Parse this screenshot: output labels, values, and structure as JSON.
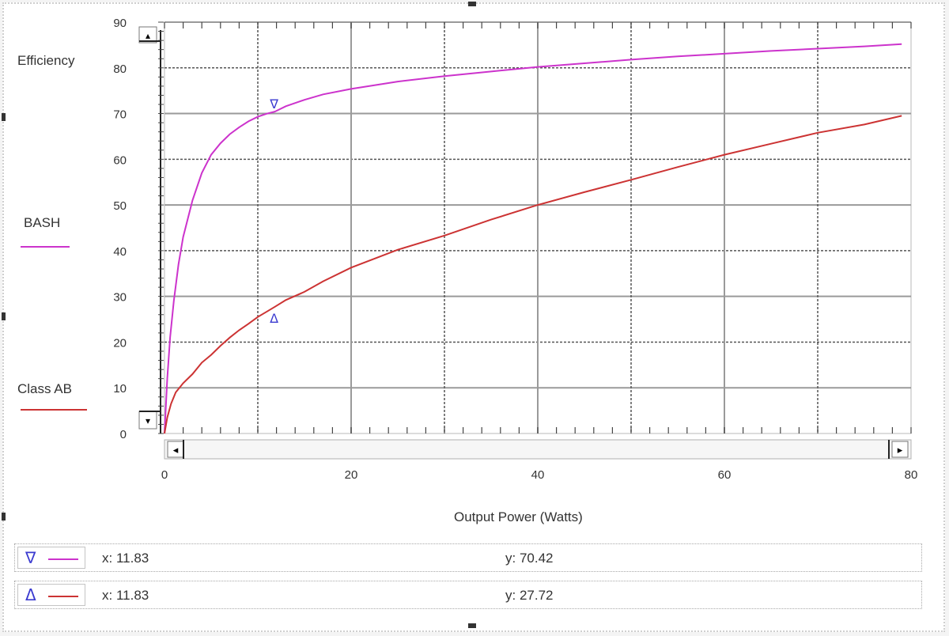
{
  "chart_data": {
    "type": "line",
    "title": "",
    "ylabel": "Efficiency",
    "xlabel": "Output Power (Watts)",
    "xlim": [
      0,
      80
    ],
    "ylim": [
      0,
      90
    ],
    "x_ticks": [
      "0",
      "20",
      "40",
      "60",
      "80"
    ],
    "y_ticks": [
      "0",
      "10",
      "20",
      "30",
      "40",
      "50",
      "60",
      "70",
      "80",
      "90"
    ],
    "grid": true,
    "legend_position": "left",
    "series": [
      {
        "name": "BASH",
        "color": "#cc33cc",
        "points": [
          [
            0,
            0
          ],
          [
            0.3,
            12
          ],
          [
            0.6,
            21
          ],
          [
            1,
            29
          ],
          [
            1.5,
            37
          ],
          [
            2,
            43
          ],
          [
            3,
            51
          ],
          [
            4,
            57
          ],
          [
            5,
            61
          ],
          [
            6,
            63.5
          ],
          [
            7,
            65.5
          ],
          [
            8,
            67
          ],
          [
            9,
            68.3
          ],
          [
            10,
            69.3
          ],
          [
            11,
            70
          ],
          [
            11.83,
            70.42
          ],
          [
            13,
            71.6
          ],
          [
            15,
            73
          ],
          [
            17,
            74.2
          ],
          [
            20,
            75.4
          ],
          [
            25,
            77
          ],
          [
            30,
            78.2
          ],
          [
            35,
            79.2
          ],
          [
            40,
            80.2
          ],
          [
            45,
            81
          ],
          [
            50,
            81.8
          ],
          [
            55,
            82.5
          ],
          [
            60,
            83.1
          ],
          [
            65,
            83.7
          ],
          [
            70,
            84.2
          ],
          [
            75,
            84.7
          ],
          [
            79,
            85.2
          ]
        ]
      },
      {
        "name": "Class AB",
        "color": "#cc3333",
        "points": [
          [
            0,
            0
          ],
          [
            0.3,
            3.5
          ],
          [
            0.7,
            6.5
          ],
          [
            1.2,
            9
          ],
          [
            2,
            11
          ],
          [
            3,
            13
          ],
          [
            4,
            15.5
          ],
          [
            5,
            17.2
          ],
          [
            6,
            19.2
          ],
          [
            7,
            21
          ],
          [
            8,
            22.6
          ],
          [
            9,
            24
          ],
          [
            10,
            25.5
          ],
          [
            11,
            26.7
          ],
          [
            11.83,
            27.72
          ],
          [
            13,
            29.2
          ],
          [
            15,
            31
          ],
          [
            17,
            33.3
          ],
          [
            20,
            36.3
          ],
          [
            25,
            40.2
          ],
          [
            30,
            43.3
          ],
          [
            35,
            46.8
          ],
          [
            40,
            50
          ],
          [
            45,
            52.8
          ],
          [
            50,
            55.5
          ],
          [
            55,
            58.3
          ],
          [
            60,
            61
          ],
          [
            65,
            63.4
          ],
          [
            70,
            65.8
          ],
          [
            75,
            67.6
          ],
          [
            79,
            69.5
          ]
        ]
      }
    ],
    "cursor_markers": [
      {
        "glyph": "∇",
        "series": "BASH",
        "x": 11.83,
        "y": 70.42
      },
      {
        "glyph": "Δ",
        "series": "Class AB",
        "x": 11.83,
        "y": 27.72
      }
    ]
  },
  "legend": {
    "efficiency_label": "Efficiency",
    "bash_label": "BASH",
    "classab_label": "Class AB"
  },
  "cursors": [
    {
      "glyph": "∇",
      "color": "#cc33cc",
      "x_text": "x: 11.83",
      "y_text": "y: 70.42"
    },
    {
      "glyph": "Δ",
      "color": "#cc3333",
      "x_text": "x: 11.83",
      "y_text": "y: 27.72"
    }
  ],
  "scroll": {
    "left_arrow": "◂",
    "right_arrow": "▸",
    "up_arrow": "▴",
    "down_arrow": "▾"
  }
}
